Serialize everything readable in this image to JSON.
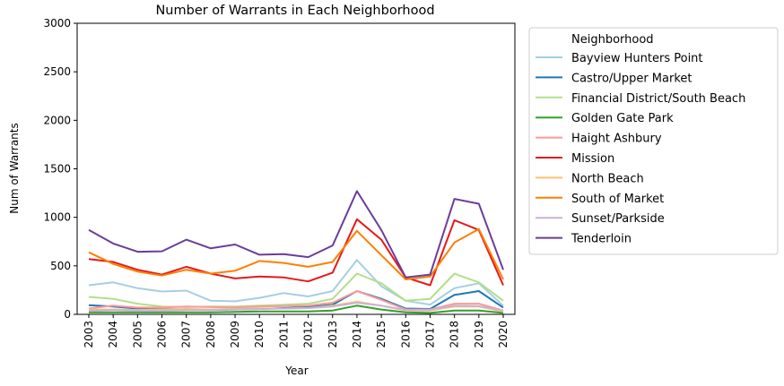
{
  "chart_data": {
    "type": "line",
    "title": "Number of Warrants in Each Neighborhood",
    "xlabel": "Year",
    "ylabel": "Num of Warrants",
    "x": [
      2003,
      2004,
      2005,
      2006,
      2007,
      2008,
      2009,
      2010,
      2011,
      2012,
      2013,
      2014,
      2015,
      2016,
      2017,
      2018,
      2019,
      2020
    ],
    "yticks": [
      0,
      500,
      1000,
      1500,
      2000,
      2500,
      3000
    ],
    "ylim": [
      0,
      3000
    ],
    "grid": false,
    "legend": {
      "title": "Neighborhood",
      "placement": "outside right"
    },
    "series": [
      {
        "name": "Bayview Hunters Point",
        "color": "#a6cee3",
        "values": [
          300,
          330,
          270,
          235,
          245,
          140,
          135,
          170,
          220,
          185,
          240,
          560,
          290,
          140,
          100,
          270,
          320,
          90
        ]
      },
      {
        "name": "Castro/Upper Market",
        "color": "#1f78b4",
        "values": [
          95,
          80,
          60,
          55,
          50,
          45,
          50,
          55,
          65,
          75,
          100,
          240,
          160,
          60,
          55,
          200,
          240,
          70
        ]
      },
      {
        "name": "Financial District/South Beach",
        "color": "#b2df8a",
        "values": [
          180,
          160,
          110,
          80,
          75,
          80,
          80,
          90,
          100,
          110,
          160,
          420,
          320,
          140,
          160,
          420,
          330,
          140
        ]
      },
      {
        "name": "Golden Gate Park",
        "color": "#33a02c",
        "values": [
          20,
          20,
          20,
          20,
          20,
          20,
          25,
          30,
          30,
          30,
          40,
          90,
          50,
          20,
          15,
          40,
          40,
          15
        ]
      },
      {
        "name": "Haight Ashbury",
        "color": "#fb9a99",
        "values": [
          60,
          90,
          70,
          70,
          80,
          75,
          70,
          80,
          85,
          90,
          120,
          240,
          150,
          50,
          50,
          110,
          110,
          40
        ]
      },
      {
        "name": "Mission",
        "color": "#e31a1c",
        "values": [
          570,
          540,
          460,
          410,
          490,
          420,
          370,
          390,
          380,
          340,
          430,
          980,
          770,
          380,
          300,
          970,
          870,
          300
        ]
      },
      {
        "name": "North Beach",
        "color": "#fdbf6f",
        "values": [
          50,
          50,
          45,
          50,
          55,
          50,
          55,
          60,
          60,
          65,
          90,
          130,
          90,
          40,
          40,
          80,
          80,
          30
        ]
      },
      {
        "name": "South of Market",
        "color": "#ff7f00",
        "values": [
          640,
          520,
          440,
          400,
          460,
          420,
          450,
          550,
          530,
          490,
          540,
          860,
          610,
          360,
          390,
          740,
          880,
          360
        ]
      },
      {
        "name": "Sunset/Parkside",
        "color": "#cab2d6",
        "values": [
          40,
          45,
          40,
          40,
          45,
          45,
          50,
          55,
          60,
          65,
          80,
          120,
          90,
          45,
          45,
          90,
          85,
          40
        ]
      },
      {
        "name": "Tenderloin",
        "color": "#6a3d9a",
        "values": [
          870,
          730,
          645,
          650,
          770,
          680,
          720,
          615,
          620,
          590,
          710,
          1270,
          870,
          380,
          410,
          1190,
          1140,
          460
        ]
      }
    ]
  }
}
